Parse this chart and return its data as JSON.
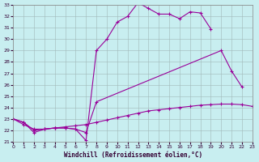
{
  "xlabel": "Windchill (Refroidissement éolien,°C)",
  "bg_color": "#c8eef0",
  "grid_color": "#a0b8b8",
  "line_color": "#990099",
  "ylim": [
    21,
    33
  ],
  "xlim": [
    0,
    23
  ],
  "yticks": [
    21,
    22,
    23,
    24,
    25,
    26,
    27,
    28,
    29,
    30,
    31,
    32,
    33
  ],
  "xticks": [
    0,
    1,
    2,
    3,
    4,
    5,
    6,
    7,
    8,
    9,
    10,
    11,
    12,
    13,
    14,
    15,
    16,
    17,
    18,
    19,
    20,
    21,
    22,
    23
  ],
  "curves": [
    {
      "x": [
        0,
        1,
        2,
        3,
        4,
        5,
        6,
        7,
        8,
        9,
        10,
        11,
        12,
        13,
        14,
        15,
        16,
        17,
        18,
        19
      ],
      "y": [
        23,
        22.7,
        21.8,
        22.1,
        22.2,
        22.2,
        22.1,
        21.1,
        29.0,
        30.0,
        31.5,
        32.0,
        33.2,
        32.7,
        32.2,
        32.2,
        31.8,
        32.4,
        32.3,
        30.9
      ]
    },
    {
      "x": [
        0,
        1,
        2,
        3,
        4,
        5,
        6,
        7,
        8,
        20,
        21,
        22
      ],
      "y": [
        23,
        22.7,
        22.0,
        22.1,
        22.2,
        22.2,
        22.1,
        21.8,
        24.5,
        29.0,
        27.2,
        25.8
      ]
    },
    {
      "x": [
        0,
        1,
        2,
        3,
        4,
        5,
        6,
        7,
        8,
        9,
        10,
        11,
        12,
        13,
        14,
        15,
        16,
        17,
        18,
        19,
        20,
        21,
        22,
        23
      ],
      "y": [
        23,
        22.5,
        22.1,
        22.1,
        22.2,
        22.3,
        22.4,
        22.5,
        22.7,
        22.9,
        23.1,
        23.3,
        23.5,
        23.7,
        23.8,
        23.9,
        24.0,
        24.1,
        24.2,
        24.25,
        24.3,
        24.3,
        24.25,
        24.1
      ]
    }
  ]
}
